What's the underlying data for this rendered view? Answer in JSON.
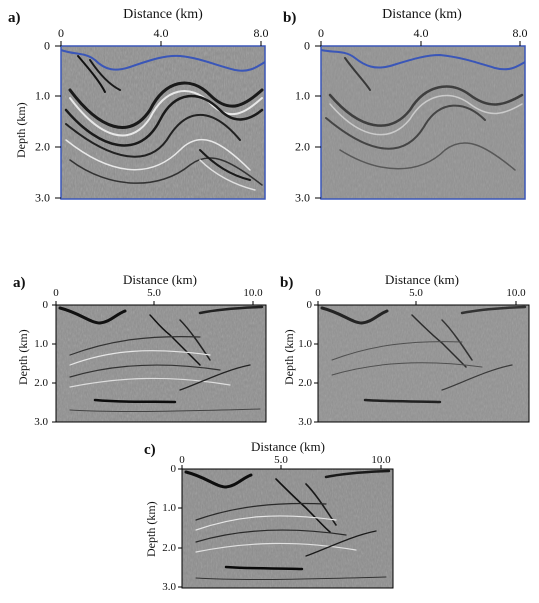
{
  "figures": [
    {
      "id": "top-a",
      "panel_label": "a)",
      "xlabel": "Distance (km)",
      "ylabel": "Depth (km)",
      "xticks": [
        "0",
        "4.0",
        "8.0"
      ],
      "yticks": [
        "0",
        "1.0",
        "2.0",
        "3.0"
      ],
      "water_bottom_color": "#3a56b8"
    },
    {
      "id": "top-b",
      "panel_label": "b)",
      "xlabel": "Distance (km)",
      "xticks": [
        "0",
        "4.0",
        "8.0"
      ],
      "yticks": [
        "0",
        "1.0",
        "2.0",
        "3.0"
      ],
      "water_bottom_color": "#3a56b8"
    },
    {
      "id": "bottom-a",
      "panel_label": "a)",
      "xlabel": "Distance (km)",
      "ylabel": "Depth (km)",
      "xticks": [
        "0",
        "5.0",
        "10.0"
      ],
      "yticks": [
        "0",
        "1.0",
        "2.0",
        "3.0"
      ]
    },
    {
      "id": "bottom-b",
      "panel_label": "b)",
      "xlabel": "Distance (km)",
      "ylabel": "Depth (km)",
      "xticks": [
        "0",
        "5.0",
        "10.0"
      ],
      "yticks": [
        "0",
        "1.0",
        "2.0",
        "3.0"
      ]
    },
    {
      "id": "bottom-c",
      "panel_label": "c)",
      "xlabel": "Distance (km)",
      "ylabel": "Depth (km)",
      "xticks": [
        "0",
        "5.0",
        "10.0"
      ],
      "yticks": [
        "0",
        "1.0",
        "2.0",
        "3.0"
      ]
    }
  ],
  "colors": {
    "background_gray": "#8e8e8e",
    "reflector_dark": "#1a1a1a",
    "reflector_light": "#e8e8e8",
    "axis": "#000000"
  }
}
